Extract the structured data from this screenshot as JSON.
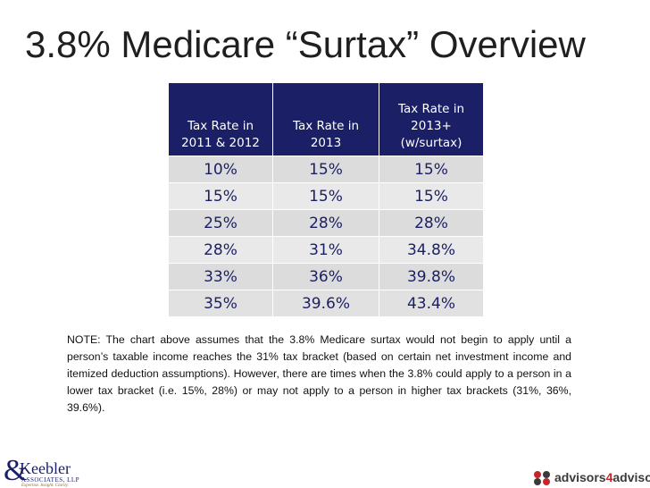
{
  "title": "3.8% Medicare “Surtax” Overview",
  "table": {
    "headers": [
      [
        "Tax Rate in",
        "2011 & 2012"
      ],
      [
        "Tax Rate in",
        "2013"
      ],
      [
        "Tax Rate in",
        "2013+",
        "(w/surtax)"
      ]
    ],
    "rows": [
      [
        "10%",
        "15%",
        "15%"
      ],
      [
        "15%",
        "15%",
        "15%"
      ],
      [
        "25%",
        "28%",
        "28%"
      ],
      [
        "28%",
        "31%",
        "34.8%"
      ],
      [
        "33%",
        "36%",
        "39.8%"
      ],
      [
        "35%",
        "39.6%",
        "43.4%"
      ]
    ]
  },
  "note": "NOTE: The chart above assumes that the 3.8% Medicare surtax would not begin to apply until a person’s taxable income reaches the 31% tax bracket (based on certain net investment income and itemized deduction assumptions). However, there are times when the 3.8% could apply to a person in a lower tax bracket (i.e. 15%, 28%) or may not apply to a person in higher tax brackets (31%, 36%, 39.6%).",
  "logos": {
    "left": {
      "amp": "&",
      "name": "Keebler",
      "sub": "ASSOCIATES, LLP",
      "tagline": "Expertise. Insight. Clarity."
    },
    "right": {
      "prefix": "advisors",
      "number": "4",
      "suffix": "advisors"
    }
  },
  "colors": {
    "header_bg": "#1a1f66",
    "cell_bg": "#dcdcdc",
    "accent_red": "#c0282d"
  }
}
